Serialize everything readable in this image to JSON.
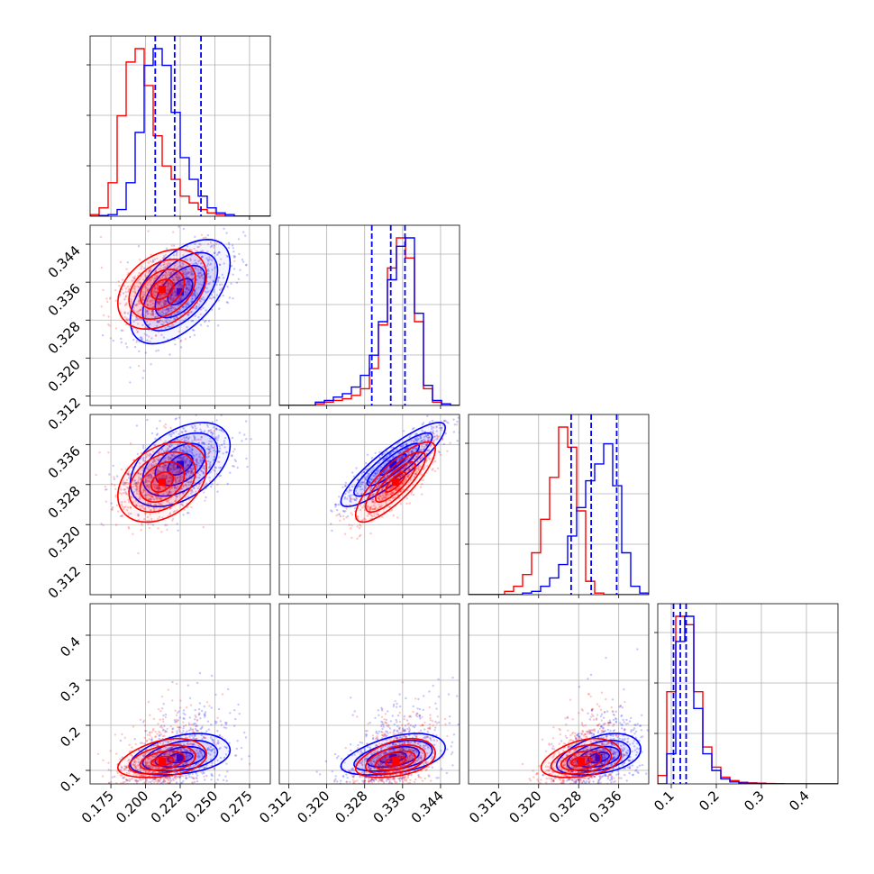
{
  "chart_data": {
    "type": "corner",
    "grid": true,
    "colors": {
      "series_a": "#0000ff",
      "series_b": "#ff0000",
      "quantile_line": "#0000ff"
    },
    "params": [
      {
        "range": [
          0.16,
          0.29
        ],
        "ticks": [
          0.175,
          0.2,
          0.225,
          0.25,
          0.275
        ],
        "tick_labels": [
          "0.175",
          "0.200",
          "0.225",
          "0.250",
          "0.275"
        ]
      },
      {
        "range": [
          0.31,
          0.348
        ],
        "ticks": [
          0.312,
          0.32,
          0.328,
          0.336,
          0.344
        ],
        "tick_labels": [
          "0.312",
          "0.320",
          "0.328",
          "0.336",
          "0.344"
        ]
      },
      {
        "range": [
          0.306,
          0.342
        ],
        "ticks": [
          0.312,
          0.32,
          0.328,
          0.336
        ],
        "tick_labels": [
          "0.312",
          "0.320",
          "0.328",
          "0.336"
        ]
      },
      {
        "range": [
          0.07,
          0.47
        ],
        "ticks": [
          0.1,
          0.2,
          0.3,
          0.4
        ],
        "tick_labels": [
          "0.1",
          "0.2",
          "0.3",
          "0.4"
        ]
      }
    ],
    "quantiles": [
      [
        0.207,
        0.221,
        0.24
      ],
      [
        0.3295,
        0.3335,
        0.3365
      ],
      [
        0.3265,
        0.3305,
        0.3356
      ],
      [
        0.105,
        0.12,
        0.133
      ]
    ],
    "series": [
      {
        "mean": [
          0.225,
          0.334,
          0.332,
          0.128
        ],
        "sd": [
          0.018,
          0.0055,
          0.0042,
          0.03
        ],
        "corr": {
          "0-1": 0.55,
          "0-2": 0.45,
          "1-2": 0.88,
          "0-3": 0.35,
          "1-3": 0.45,
          "2-3": 0.4
        },
        "hist": [
          [
            0,
            0.004,
            0.01,
            0.04,
            0.2,
            0.5,
            0.9,
            1.0,
            0.9,
            0.62,
            0.35,
            0.22,
            0.12,
            0.05,
            0.02,
            0.01,
            0,
            0,
            0,
            0
          ],
          [
            0,
            0,
            0,
            0,
            0.02,
            0.03,
            0.05,
            0.07,
            0.11,
            0.18,
            0.3,
            0.5,
            0.75,
            0.95,
            1.0,
            0.55,
            0.12,
            0.03,
            0.01,
            0
          ],
          [
            0,
            0,
            0,
            0,
            0,
            0,
            0.01,
            0.02,
            0.05,
            0.1,
            0.18,
            0.35,
            0.52,
            0.68,
            0.78,
            0.9,
            0.65,
            0.25,
            0.05,
            0.01
          ],
          [
            0,
            0.18,
            0.85,
            1.0,
            0.45,
            0.18,
            0.08,
            0.03,
            0.012,
            0.005,
            0.003,
            0.002,
            0.001,
            0.001,
            0,
            0,
            0,
            0,
            0,
            0
          ]
        ]
      },
      {
        "mean": [
          0.212,
          0.3345,
          0.3285,
          0.12
        ],
        "sd": [
          0.016,
          0.0042,
          0.004,
          0.038
        ],
        "corr": {
          "0-1": 0.35,
          "0-2": 0.35,
          "1-2": 0.82,
          "0-3": 0.35,
          "1-3": 0.4,
          "2-3": 0.35
        },
        "hist": [
          [
            0.01,
            0.05,
            0.2,
            0.6,
            0.92,
            1.0,
            0.78,
            0.48,
            0.3,
            0.22,
            0.12,
            0.08,
            0.04,
            0.02,
            0.01,
            0,
            0,
            0,
            0,
            0
          ],
          [
            0,
            0,
            0,
            0,
            0.01,
            0.02,
            0.03,
            0.04,
            0.06,
            0.1,
            0.22,
            0.48,
            0.82,
            1.0,
            0.88,
            0.5,
            0.1,
            0.02,
            0,
            0
          ],
          [
            0,
            0,
            0,
            0,
            0.02,
            0.05,
            0.12,
            0.25,
            0.45,
            0.7,
            1.0,
            0.88,
            0.5,
            0.08,
            0.01,
            0,
            0,
            0,
            0,
            0
          ],
          [
            0.05,
            0.55,
            1.0,
            0.95,
            0.55,
            0.22,
            0.1,
            0.04,
            0.02,
            0.01,
            0.006,
            0.004,
            0.002,
            0.001,
            0,
            0,
            0,
            0,
            0,
            0
          ]
        ]
      }
    ]
  }
}
